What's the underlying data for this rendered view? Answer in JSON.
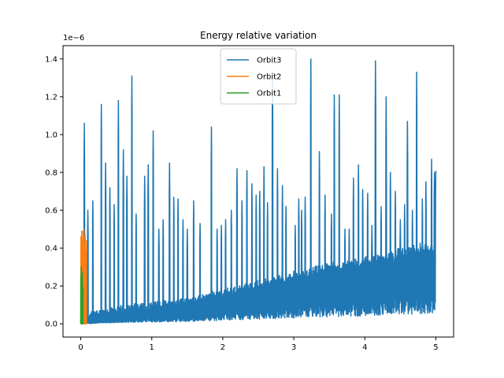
{
  "chart_data": {
    "type": "line",
    "title": "Energy relative variation",
    "xlabel": "",
    "ylabel": "",
    "y_scale_label": "1e−6",
    "xlim": [
      -0.25,
      5.25
    ],
    "ylim": [
      -0.07,
      1.47
    ],
    "x_ticks": [
      0,
      1,
      2,
      3,
      4,
      5
    ],
    "x_tick_labels": [
      "0",
      "1",
      "2",
      "3",
      "4",
      "5"
    ],
    "y_ticks": [
      0.0,
      0.2,
      0.4,
      0.6,
      0.8,
      1.0,
      1.2,
      1.4
    ],
    "y_tick_labels": [
      "0.0",
      "0.2",
      "0.4",
      "0.6",
      "0.8",
      "1.0",
      "1.2",
      "1.4"
    ],
    "grid": false,
    "legend_position": "top-center",
    "series": [
      {
        "name": "Orbit3",
        "color": "#1f77b4",
        "x_range": [
          0,
          5
        ],
        "baseline_trend": [
          [
            0,
            0.0
          ],
          [
            0.5,
            0.04
          ],
          [
            1,
            0.06
          ],
          [
            1.5,
            0.08
          ],
          [
            2,
            0.12
          ],
          [
            2.5,
            0.16
          ],
          [
            3,
            0.2
          ],
          [
            3.5,
            0.24
          ],
          [
            4,
            0.27
          ],
          [
            4.5,
            0.31
          ],
          [
            5,
            0.35
          ]
        ],
        "peaks": [
          [
            0.05,
            1.06
          ],
          [
            0.1,
            0.6
          ],
          [
            0.17,
            0.65
          ],
          [
            0.29,
            1.16
          ],
          [
            0.35,
            0.85
          ],
          [
            0.41,
            0.72
          ],
          [
            0.47,
            0.63
          ],
          [
            0.53,
            1.18
          ],
          [
            0.6,
            0.92
          ],
          [
            0.65,
            0.78
          ],
          [
            0.72,
            1.31
          ],
          [
            0.78,
            0.58
          ],
          [
            0.9,
            0.78
          ],
          [
            0.95,
            0.84
          ],
          [
            1.02,
            1.02
          ],
          [
            1.1,
            0.5
          ],
          [
            1.16,
            0.55
          ],
          [
            1.25,
            0.85
          ],
          [
            1.31,
            0.67
          ],
          [
            1.37,
            0.66
          ],
          [
            1.44,
            0.55
          ],
          [
            1.5,
            0.5
          ],
          [
            1.59,
            0.65
          ],
          [
            1.68,
            0.53
          ],
          [
            1.84,
            1.04
          ],
          [
            1.92,
            0.5
          ],
          [
            1.98,
            0.52
          ],
          [
            2.04,
            0.55
          ],
          [
            2.12,
            0.6
          ],
          [
            2.2,
            0.82
          ],
          [
            2.27,
            0.65
          ],
          [
            2.34,
            0.81
          ],
          [
            2.41,
            0.74
          ],
          [
            2.47,
            0.68
          ],
          [
            2.52,
            0.7
          ],
          [
            2.58,
            0.83
          ],
          [
            2.63,
            0.64
          ],
          [
            2.7,
            1.33
          ],
          [
            2.77,
            0.82
          ],
          [
            2.84,
            0.73
          ],
          [
            2.89,
            0.62
          ],
          [
            3.02,
            0.52
          ],
          [
            3.07,
            0.66
          ],
          [
            3.11,
            0.6
          ],
          [
            3.16,
            0.67
          ],
          [
            3.24,
            1.4
          ],
          [
            3.36,
            0.91
          ],
          [
            3.44,
            0.68
          ],
          [
            3.53,
            0.58
          ],
          [
            3.57,
            1.21
          ],
          [
            3.64,
            1.21
          ],
          [
            3.72,
            0.5
          ],
          [
            3.78,
            0.5
          ],
          [
            3.84,
            0.77
          ],
          [
            3.91,
            0.84
          ],
          [
            3.97,
            0.71
          ],
          [
            4.04,
            0.69
          ],
          [
            4.1,
            0.52
          ],
          [
            4.15,
            1.39
          ],
          [
            4.23,
            0.62
          ],
          [
            4.3,
            1.2
          ],
          [
            4.36,
            0.8
          ],
          [
            4.43,
            0.7
          ],
          [
            4.5,
            0.55
          ],
          [
            4.56,
            0.63
          ],
          [
            4.6,
            1.07
          ],
          [
            4.67,
            0.6
          ],
          [
            4.73,
            1.33
          ],
          [
            4.81,
            0.66
          ],
          [
            4.86,
            0.75
          ],
          [
            4.94,
            0.87
          ],
          [
            4.98,
            0.8
          ],
          [
            5.0,
            0.81
          ]
        ]
      },
      {
        "name": "Orbit2",
        "color": "#ff7f0e",
        "x_range": [
          0,
          0.08
        ],
        "peaks": [
          [
            0.0,
            0.46
          ],
          [
            0.01,
            0.49
          ],
          [
            0.02,
            0.44
          ],
          [
            0.03,
            0.49
          ],
          [
            0.04,
            0.5
          ],
          [
            0.05,
            0.42
          ],
          [
            0.06,
            0.47
          ],
          [
            0.07,
            0.38
          ],
          [
            0.08,
            0.44
          ]
        ]
      },
      {
        "name": "Orbit1",
        "color": "#2ca02c",
        "x_range": [
          0,
          0.03
        ],
        "peaks": [
          [
            0.0,
            0.25
          ],
          [
            0.005,
            0.3
          ],
          [
            0.01,
            0.28
          ],
          [
            0.015,
            0.22
          ],
          [
            0.02,
            0.27
          ],
          [
            0.025,
            0.2
          ],
          [
            0.03,
            0.18
          ]
        ]
      }
    ]
  }
}
